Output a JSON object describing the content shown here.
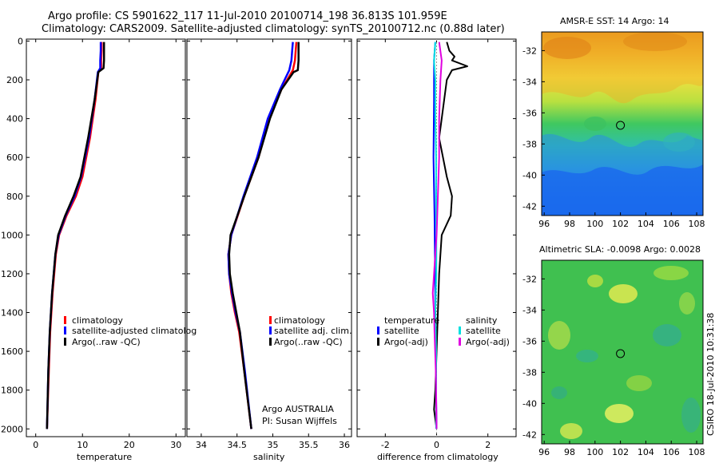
{
  "header": {
    "line1": "Argo profile: CS 5901622_117 11-Jul-2010 20100714_198 36.813S 101.959E",
    "line2": "Climatology: CARS2009. Satellite-adjusted climatology: synTS_20100712.nc (0.88d later)"
  },
  "colors": {
    "climatology": "#ff0000",
    "satellite": "#0000ff",
    "argo": "#000000",
    "sat_salinity": "#00e0e0",
    "argo_salinity": "#e000e0"
  },
  "note": {
    "line1": "Argo AUSTRALIA",
    "line2": "PI: Susan Wijffels"
  },
  "side_label": "CSIRO 18-Jul-2010 10:31:38",
  "chart_data": [
    {
      "type": "line",
      "id": "temperature",
      "xlabel": "temperature",
      "xlim": [
        -2,
        32
      ],
      "ylim": [
        2040,
        -10
      ],
      "xticks": [
        0,
        10,
        20,
        30
      ],
      "yticks": [
        0,
        200,
        400,
        600,
        800,
        1000,
        1200,
        1400,
        1600,
        1800,
        2000
      ],
      "legend": [
        "climatology",
        "satellite-adjusted climatolog",
        "Argo(..raw -QC)"
      ],
      "series": [
        {
          "name": "climatology",
          "color": "#ff0000",
          "depth": [
            5,
            50,
            100,
            140,
            160,
            300,
            500,
            700,
            800,
            900,
            1000,
            1100,
            1300,
            1500,
            1700,
            2000
          ],
          "values": [
            14.1,
            14.1,
            14.0,
            14.0,
            13.4,
            12.8,
            11.6,
            10.0,
            8.6,
            6.6,
            5.0,
            4.3,
            3.6,
            3.1,
            2.8,
            2.4
          ]
        },
        {
          "name": "satellite-adjusted climatology",
          "color": "#0000ff",
          "depth": [
            5,
            50,
            100,
            140,
            160,
            300,
            500,
            700,
            800,
            900,
            1000,
            1100,
            1300,
            1500,
            1700,
            2000
          ],
          "values": [
            13.9,
            13.9,
            13.8,
            13.8,
            13.3,
            12.6,
            11.4,
            9.7,
            8.3,
            6.4,
            4.9,
            4.2,
            3.5,
            3.0,
            2.7,
            2.4
          ]
        },
        {
          "name": "Argo(..raw -QC)",
          "color": "#000000",
          "depth": [
            5,
            50,
            100,
            140,
            160,
            300,
            500,
            700,
            800,
            900,
            1000,
            1100,
            1300,
            1500,
            1700,
            2000
          ],
          "values": [
            14.6,
            14.6,
            14.6,
            14.5,
            13.4,
            12.6,
            11.2,
            9.6,
            8.1,
            6.3,
            4.8,
            4.2,
            3.5,
            3.0,
            2.7,
            2.4
          ]
        }
      ]
    },
    {
      "type": "line",
      "id": "salinity",
      "xlabel": "salinity",
      "xlim": [
        33.8,
        36.1
      ],
      "ylim": [
        2040,
        -10
      ],
      "xticks": [
        34,
        34.5,
        35,
        35.5,
        36
      ],
      "legend": [
        "climatology",
        "satellite adj. clim.",
        "Argo(..raw -QC)"
      ],
      "series": [
        {
          "name": "climatology",
          "color": "#ff0000",
          "depth": [
            5,
            50,
            100,
            150,
            250,
            400,
            600,
            800,
            1000,
            1100,
            1200,
            1300,
            1400,
            1500,
            1700,
            2000
          ],
          "values": [
            35.33,
            35.32,
            35.31,
            35.28,
            35.12,
            34.95,
            34.8,
            34.6,
            34.42,
            34.38,
            34.39,
            34.42,
            34.47,
            34.53,
            34.6,
            34.7
          ]
        },
        {
          "name": "satellite adj. clim.",
          "color": "#0000ff",
          "depth": [
            5,
            50,
            100,
            150,
            250,
            400,
            600,
            800,
            1000,
            1100,
            1200,
            1300,
            1400,
            1500,
            1700,
            2000
          ],
          "values": [
            35.28,
            35.27,
            35.26,
            35.23,
            35.1,
            34.93,
            34.78,
            34.59,
            34.42,
            34.38,
            34.39,
            34.43,
            34.48,
            34.54,
            34.61,
            34.7
          ]
        },
        {
          "name": "Argo(..raw -QC)",
          "color": "#000000",
          "depth": [
            5,
            50,
            100,
            150,
            160,
            250,
            400,
            600,
            800,
            1000,
            1100,
            1200,
            1300,
            1400,
            1500,
            1700,
            2000
          ],
          "values": [
            35.36,
            35.36,
            35.36,
            35.35,
            35.29,
            35.12,
            34.96,
            34.8,
            34.6,
            34.41,
            34.39,
            34.4,
            34.44,
            34.49,
            34.54,
            34.6,
            34.7
          ]
        }
      ]
    },
    {
      "type": "line",
      "id": "difference",
      "xlabel": "difference from climatology",
      "xlim": [
        -3.1,
        3.1
      ],
      "ylim": [
        2040,
        -10
      ],
      "xticks": [
        -2,
        0,
        2
      ],
      "legend_groups": {
        "temperature": {
          "title": "temperature",
          "items": [
            "satellite",
            "Argo(-adj)"
          ]
        },
        "salinity": {
          "title": "salinity",
          "items": [
            "satellite",
            "Argo(-adj)"
          ]
        }
      },
      "series": [
        {
          "name": "temperature satellite",
          "color": "#0000ff",
          "depth": [
            5,
            100,
            300,
            600,
            900,
            1200,
            1500,
            1800,
            2000
          ],
          "values": [
            -0.05,
            -0.1,
            -0.1,
            -0.12,
            -0.08,
            -0.06,
            -0.04,
            -0.02,
            0.0
          ]
        },
        {
          "name": "temperature Argo(-adj)",
          "color": "#000000",
          "depth": [
            5,
            50,
            80,
            100,
            130,
            150,
            200,
            300,
            500,
            600,
            700,
            800,
            900,
            1000,
            1200,
            1400,
            1600,
            1800,
            1900,
            2000
          ],
          "values": [
            0.4,
            0.5,
            0.7,
            0.6,
            1.2,
            0.6,
            0.4,
            0.3,
            0.1,
            0.25,
            0.4,
            0.6,
            0.55,
            0.2,
            0.1,
            0.05,
            0.0,
            -0.05,
            -0.1,
            0.0
          ]
        },
        {
          "name": "salinity satellite",
          "color": "#00e0e0",
          "depth": [
            5,
            100,
            200,
            400,
            600,
            800,
            1000,
            1200,
            1400,
            1600,
            1800,
            2000
          ],
          "values": [
            -0.05,
            -0.1,
            -0.05,
            -0.05,
            -0.02,
            -0.02,
            -0.01,
            -0.01,
            -0.05,
            -0.02,
            -0.02,
            -0.02
          ]
        },
        {
          "name": "salinity Argo(-adj)",
          "color": "#e000e0",
          "depth": [
            5,
            100,
            200,
            400,
            600,
            800,
            1000,
            1100,
            1200,
            1300,
            1400,
            1500,
            1700,
            2000
          ],
          "values": [
            0.1,
            0.2,
            0.15,
            0.1,
            0.1,
            0.05,
            0.0,
            -0.05,
            -0.1,
            -0.15,
            -0.1,
            -0.08,
            -0.03,
            0.0
          ]
        }
      ]
    },
    {
      "type": "heatmap",
      "id": "sst_map",
      "title": "AMSR-E SST: 14 Argo: 14",
      "xlim": [
        95.8,
        108.5
      ],
      "ylim": [
        -42.6,
        -30.8
      ],
      "xticks": [
        96,
        98,
        100,
        102,
        104,
        106,
        108
      ],
      "yticks": [
        -32,
        -34,
        -36,
        -38,
        -40,
        -42
      ],
      "marker": {
        "lon": 102.0,
        "lat": -36.8
      }
    },
    {
      "type": "heatmap",
      "id": "sla_map",
      "title": "Altimetric SLA: -0.0098 Argo: 0.0028",
      "xlim": [
        95.8,
        108.5
      ],
      "ylim": [
        -42.6,
        -30.8
      ],
      "xticks": [
        96,
        98,
        100,
        102,
        104,
        106,
        108
      ],
      "yticks": [
        -32,
        -34,
        -36,
        -38,
        -40,
        -42
      ],
      "marker": {
        "lon": 102.0,
        "lat": -36.8
      }
    }
  ]
}
